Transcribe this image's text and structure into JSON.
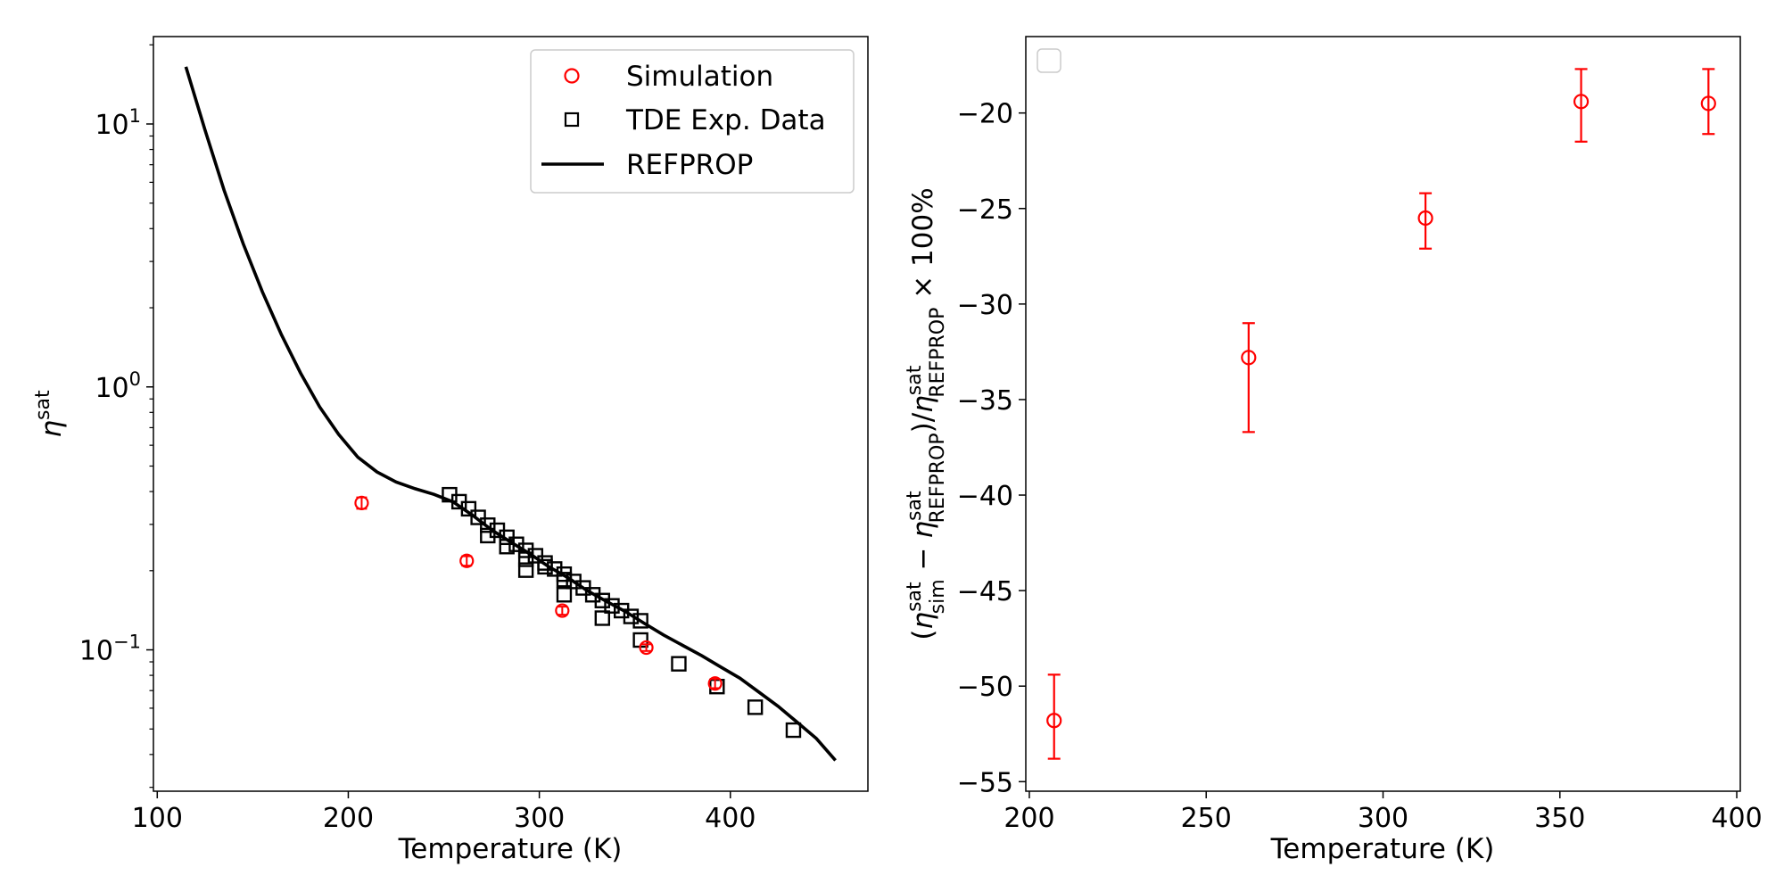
{
  "chart_data": [
    {
      "type": "scatter",
      "xlabel": "Temperature (K)",
      "ylabel": "η",
      "ylabel_sup": "sat",
      "yscale": "log",
      "xlim": [
        98,
        472
      ],
      "ylim": [
        0.029,
        21.5
      ],
      "xticks": [
        100,
        200,
        300,
        400
      ],
      "yticks": [
        {
          "value": 0.1,
          "base": "10",
          "exp": "−1"
        },
        {
          "value": 1,
          "base": "10",
          "exp": "0"
        },
        {
          "value": 10,
          "base": "10",
          "exp": "1"
        }
      ],
      "grid": false,
      "legend_position": "top-right",
      "colors": {
        "simulation": "#ff0000",
        "exp": "#000000",
        "refprop": "#000000"
      },
      "series": [
        {
          "name": "Simulation",
          "kind": "markers-errorbars",
          "points": [
            {
              "x": 207,
              "y": 0.362,
              "err": 0.018
            },
            {
              "x": 262,
              "y": 0.218,
              "err": 0.009
            },
            {
              "x": 312,
              "y": 0.141,
              "err": 0.005
            },
            {
              "x": 356,
              "y": 0.102,
              "err": 0.003
            },
            {
              "x": 392,
              "y": 0.0745,
              "err": 0.003
            }
          ]
        },
        {
          "name": "TDE Exp. Data",
          "kind": "square-markers",
          "points": [
            {
              "x": 253,
              "y": 0.389
            },
            {
              "x": 258,
              "y": 0.366
            },
            {
              "x": 263,
              "y": 0.344
            },
            {
              "x": 268,
              "y": 0.319
            },
            {
              "x": 273,
              "y": 0.298
            },
            {
              "x": 273,
              "y": 0.272
            },
            {
              "x": 278,
              "y": 0.285
            },
            {
              "x": 283,
              "y": 0.268
            },
            {
              "x": 283,
              "y": 0.247
            },
            {
              "x": 288,
              "y": 0.252
            },
            {
              "x": 293,
              "y": 0.239
            },
            {
              "x": 293,
              "y": 0.221
            },
            {
              "x": 293,
              "y": 0.201
            },
            {
              "x": 298,
              "y": 0.228
            },
            {
              "x": 303,
              "y": 0.214
            },
            {
              "x": 303,
              "y": 0.207
            },
            {
              "x": 308,
              "y": 0.203
            },
            {
              "x": 313,
              "y": 0.194
            },
            {
              "x": 313,
              "y": 0.185
            },
            {
              "x": 313,
              "y": 0.162
            },
            {
              "x": 318,
              "y": 0.182
            },
            {
              "x": 323,
              "y": 0.172
            },
            {
              "x": 328,
              "y": 0.162
            },
            {
              "x": 333,
              "y": 0.154
            },
            {
              "x": 333,
              "y": 0.132
            },
            {
              "x": 338,
              "y": 0.147
            },
            {
              "x": 343,
              "y": 0.141
            },
            {
              "x": 348,
              "y": 0.134
            },
            {
              "x": 353,
              "y": 0.129
            },
            {
              "x": 353,
              "y": 0.109
            },
            {
              "x": 373,
              "y": 0.0885
            },
            {
              "x": 393,
              "y": 0.0725
            },
            {
              "x": 413,
              "y": 0.0605
            },
            {
              "x": 433,
              "y": 0.0495
            }
          ]
        },
        {
          "name": "REFPROP",
          "kind": "line",
          "points": [
            {
              "x": 115,
              "y": 16.5
            },
            {
              "x": 125,
              "y": 9.5
            },
            {
              "x": 135,
              "y": 5.6
            },
            {
              "x": 145,
              "y": 3.5
            },
            {
              "x": 155,
              "y": 2.3
            },
            {
              "x": 165,
              "y": 1.58
            },
            {
              "x": 175,
              "y": 1.13
            },
            {
              "x": 185,
              "y": 0.84
            },
            {
              "x": 195,
              "y": 0.66
            },
            {
              "x": 205,
              "y": 0.54
            },
            {
              "x": 215,
              "y": 0.475
            },
            {
              "x": 225,
              "y": 0.435
            },
            {
              "x": 235,
              "y": 0.41
            },
            {
              "x": 245,
              "y": 0.39
            },
            {
              "x": 255,
              "y": 0.365
            },
            {
              "x": 265,
              "y": 0.325
            },
            {
              "x": 275,
              "y": 0.286
            },
            {
              "x": 285,
              "y": 0.257
            },
            {
              "x": 295,
              "y": 0.232
            },
            {
              "x": 305,
              "y": 0.207
            },
            {
              "x": 315,
              "y": 0.188
            },
            {
              "x": 325,
              "y": 0.168
            },
            {
              "x": 335,
              "y": 0.153
            },
            {
              "x": 345,
              "y": 0.14
            },
            {
              "x": 355,
              "y": 0.126
            },
            {
              "x": 365,
              "y": 0.114
            },
            {
              "x": 375,
              "y": 0.104
            },
            {
              "x": 385,
              "y": 0.095
            },
            {
              "x": 395,
              "y": 0.086
            },
            {
              "x": 405,
              "y": 0.078
            },
            {
              "x": 415,
              "y": 0.069
            },
            {
              "x": 425,
              "y": 0.061
            },
            {
              "x": 435,
              "y": 0.053
            },
            {
              "x": 445,
              "y": 0.046
            },
            {
              "x": 455,
              "y": 0.038
            }
          ]
        }
      ]
    },
    {
      "type": "scatter",
      "xlabel": "Temperature (K)",
      "ylabel_parts": {
        "open": "(",
        "eta1": "η",
        "sub1": "sim",
        "sup1": "sat",
        "minus": " − ",
        "eta2": "η",
        "sub2": "REFPROP",
        "sup2": "sat",
        "close": ")/",
        "eta3": "η",
        "sub3": "REFPROP",
        "sup3": "sat",
        "tail": " × 100%"
      },
      "xlim": [
        199,
        401
      ],
      "ylim": [
        -55.5,
        -16
      ],
      "xticks": [
        200,
        250,
        300,
        350,
        400
      ],
      "yticks": [
        -55,
        -50,
        -45,
        -40,
        -35,
        -30,
        -25,
        -20
      ],
      "ytick_labels": [
        "−55",
        "−50",
        "−45",
        "−40",
        "−35",
        "−30",
        "−25",
        "−20"
      ],
      "grid": false,
      "legend_position": "top-left",
      "color": "#ff0000",
      "points": [
        {
          "x": 207,
          "y": -51.8,
          "ylow": -53.8,
          "yhigh": -49.4
        },
        {
          "x": 262,
          "y": -32.8,
          "ylow": -36.7,
          "yhigh": -31.0
        },
        {
          "x": 312,
          "y": -25.5,
          "ylow": -27.1,
          "yhigh": -24.2
        },
        {
          "x": 356,
          "y": -19.4,
          "ylow": -21.5,
          "yhigh": -17.7
        },
        {
          "x": 392,
          "y": -19.5,
          "ylow": -21.1,
          "yhigh": -17.7
        }
      ]
    }
  ]
}
